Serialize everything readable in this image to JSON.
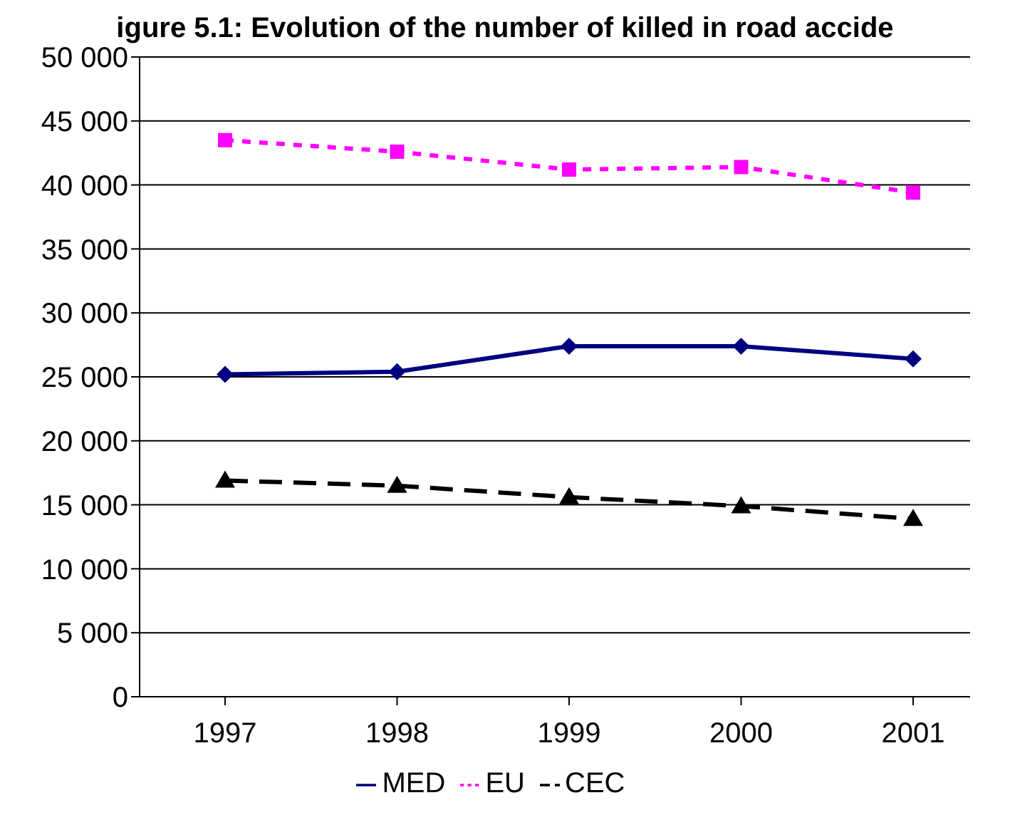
{
  "chart_data": {
    "type": "line",
    "title": "igure 5.1: Evolution of the number of killed in road accide",
    "categories": [
      "1997",
      "1998",
      "1999",
      "2000",
      "2001"
    ],
    "series": [
      {
        "name": "MED",
        "color": "#000080",
        "values": [
          25200,
          25400,
          27400,
          27400,
          26400
        ],
        "marker": "diamond",
        "line_style": "solid"
      },
      {
        "name": "EU",
        "color": "#ff00ff",
        "values": [
          43500,
          42600,
          41200,
          41400,
          39400
        ],
        "marker": "square",
        "line_style": "dotted"
      },
      {
        "name": "CEC",
        "color": "#000000",
        "values": [
          16900,
          16500,
          15600,
          14900,
          13900
        ],
        "marker": "triangle",
        "line_style": "dashed"
      }
    ],
    "ylim": [
      0,
      50000
    ],
    "yticks": [
      {
        "value": 0,
        "label": "0"
      },
      {
        "value": 5000,
        "label": "5 000"
      },
      {
        "value": 10000,
        "label": "10 000"
      },
      {
        "value": 15000,
        "label": "15 000"
      },
      {
        "value": 20000,
        "label": "20 000"
      },
      {
        "value": 25000,
        "label": "25 000"
      },
      {
        "value": 30000,
        "label": "30 000"
      },
      {
        "value": 35000,
        "label": "35 000"
      },
      {
        "value": 40000,
        "label": "40 000"
      },
      {
        "value": 45000,
        "label": "45 000"
      },
      {
        "value": 50000,
        "label": "50 000"
      }
    ],
    "grid": "y",
    "legend": "bottom"
  }
}
